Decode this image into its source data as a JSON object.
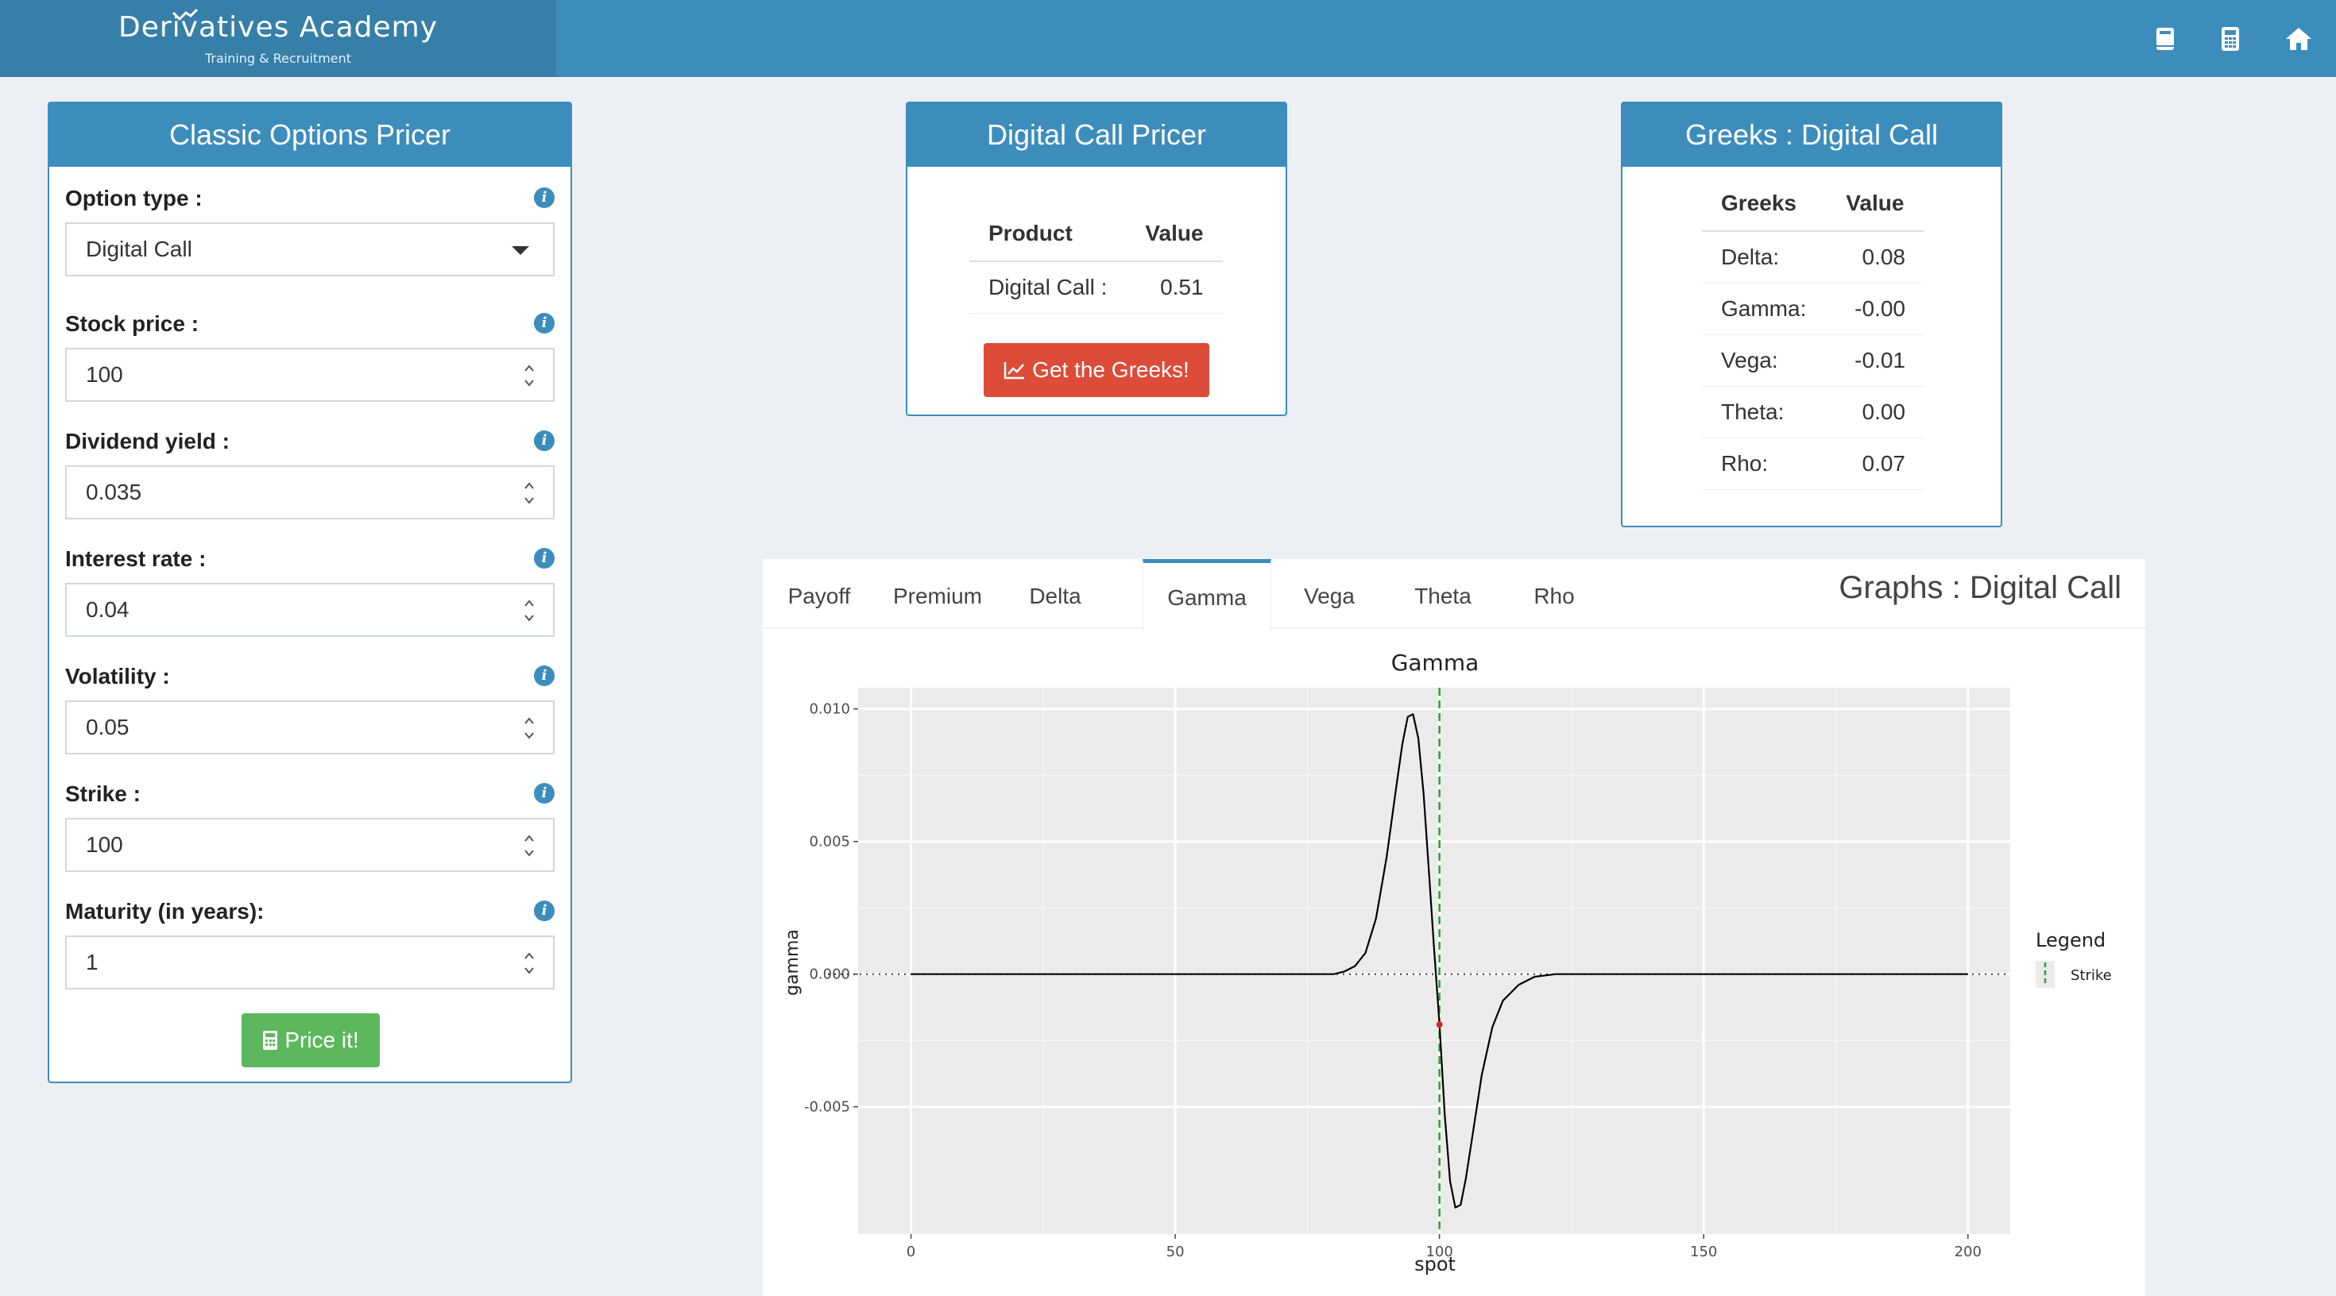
{
  "header": {
    "brand_title": "Derivatives Academy",
    "brand_subtitle": "Training & Recruitment",
    "icons": [
      "book-icon",
      "calculator-icon",
      "home-icon"
    ]
  },
  "pricer": {
    "title": "Classic Options Pricer",
    "fields": [
      {
        "label": "Option type :",
        "value": "Digital Call",
        "kind": "select"
      },
      {
        "label": "Stock price :",
        "value": "100",
        "kind": "number"
      },
      {
        "label": "Dividend yield :",
        "value": "0.035",
        "kind": "number"
      },
      {
        "label": "Interest rate :",
        "value": "0.04",
        "kind": "number"
      },
      {
        "label": "Volatility :",
        "value": "0.05",
        "kind": "number"
      },
      {
        "label": "Strike :",
        "value": "100",
        "kind": "number"
      },
      {
        "label": "Maturity (in years):",
        "value": "1",
        "kind": "number"
      }
    ],
    "price_button": "Price it!"
  },
  "digital_pricer": {
    "title": "Digital Call Pricer",
    "col_product": "Product",
    "col_value": "Value",
    "product": "Digital Call :",
    "value": "0.51",
    "greeks_button": "Get the Greeks!"
  },
  "greeks": {
    "title": "Greeks : Digital Call",
    "col_greeks": "Greeks",
    "col_value": "Value",
    "rows": [
      {
        "name": "Delta:",
        "value": "0.08"
      },
      {
        "name": "Gamma:",
        "value": "-0.00"
      },
      {
        "name": "Vega:",
        "value": "-0.01"
      },
      {
        "name": "Theta:",
        "value": "0.00"
      },
      {
        "name": "Rho:",
        "value": "0.07"
      }
    ]
  },
  "graphs": {
    "title": "Graphs : Digital Call",
    "tabs": [
      "Payoff",
      "Premium",
      "Delta",
      "Gamma",
      "Vega",
      "Theta",
      "Rho"
    ],
    "active_tab": "Gamma"
  },
  "chart_data": {
    "type": "line",
    "title": "Gamma",
    "xlabel": "spot",
    "ylabel": "gamma",
    "xlim": [
      -10,
      208
    ],
    "ylim": [
      -0.0098,
      0.0108
    ],
    "xticks": [
      0,
      50,
      100,
      150,
      200
    ],
    "yticks": [
      -0.005,
      0.0,
      0.005,
      0.01
    ],
    "ytick_labels": [
      "-0.005",
      "0.000",
      "0.005",
      "0.010"
    ],
    "grid": true,
    "legend_title": "Legend",
    "legend_entries": [
      {
        "name": "Strike",
        "style": "dashed",
        "color": "#2ca02c"
      }
    ],
    "legend_position": "right",
    "strike": 100,
    "current_point": {
      "x": 100,
      "y": -0.0019
    },
    "series": [
      {
        "color": "#000000",
        "x": [
          0,
          50,
          80,
          82,
          84,
          86,
          88,
          90,
          92,
          93,
          94,
          95,
          96,
          97,
          98,
          99,
          100,
          101,
          102,
          103,
          104,
          105,
          106,
          108,
          110,
          112,
          115,
          118,
          122,
          130,
          150,
          200
        ],
        "y": [
          0,
          0,
          0,
          0.0001,
          0.0003,
          0.0008,
          0.0021,
          0.0044,
          0.0073,
          0.0087,
          0.0097,
          0.0098,
          0.0089,
          0.0068,
          0.0039,
          0.0009,
          -0.0019,
          -0.0053,
          -0.0078,
          -0.0088,
          -0.0087,
          -0.0077,
          -0.0064,
          -0.0038,
          -0.002,
          -0.001,
          -0.0004,
          -0.0001,
          0,
          0,
          0,
          0
        ]
      }
    ]
  }
}
